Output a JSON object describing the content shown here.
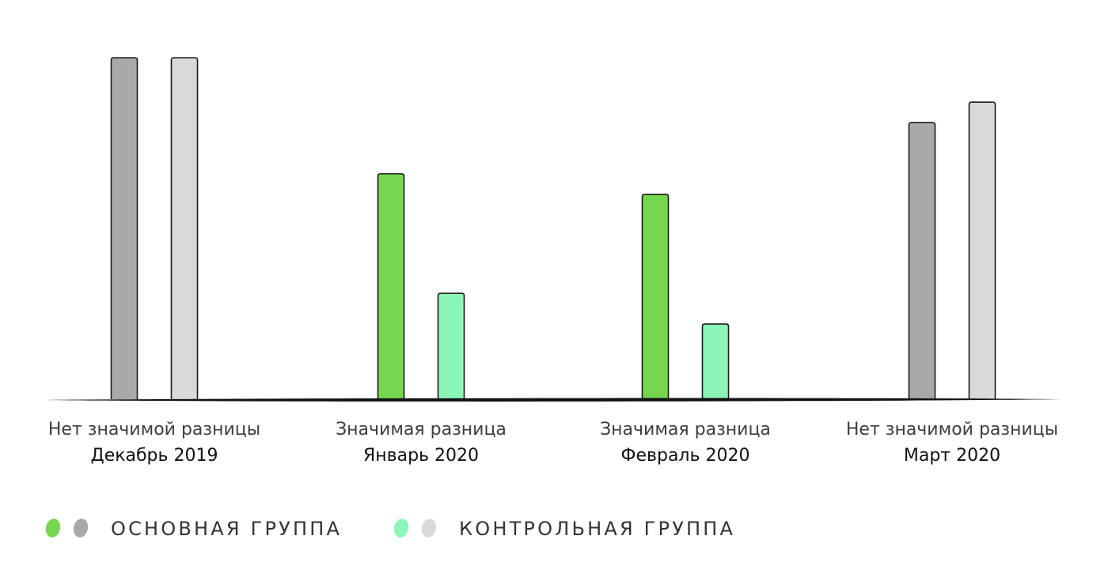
{
  "chart_data": {
    "type": "bar",
    "categories": [
      "Декабрь 2019",
      "Январь 2020",
      "Февраль 2020",
      "Март 2020"
    ],
    "category_notes": [
      "Нет значимой разницы",
      "Значимая разница",
      "Значимая разница",
      "Нет значимой разницы"
    ],
    "significant": [
      false,
      true,
      true,
      false
    ],
    "series": [
      {
        "name": "ОСНОВНАЯ ГРУППА",
        "values": [
          100,
          66,
          60,
          81
        ]
      },
      {
        "name": "КОНТРОЛЬНАЯ ГРУППА",
        "values": [
          100,
          31,
          22,
          87
        ]
      }
    ],
    "ylim": [
      0,
      100
    ],
    "xlabel": "",
    "ylabel": "",
    "grid": false,
    "y_axis_visible": false,
    "legend_position": "bottom-left",
    "colors": {
      "main_significant": "#76d650",
      "main_not_significant": "#a9a9a9",
      "control_significant": "#8ef5b9",
      "control_not_significant": "#d9d9d9",
      "bar_outline": "#1a1a1a",
      "baseline": "#111111"
    }
  },
  "legend": {
    "items": [
      {
        "label": "ОСНОВНАЯ ГРУППА",
        "dot_colors": [
          "#76d650",
          "#a9a9a9"
        ]
      },
      {
        "label": "КОНТРОЛЬНАЯ ГРУППА",
        "dot_colors": [
          "#8ef5b9",
          "#d9d9d9"
        ]
      }
    ]
  }
}
